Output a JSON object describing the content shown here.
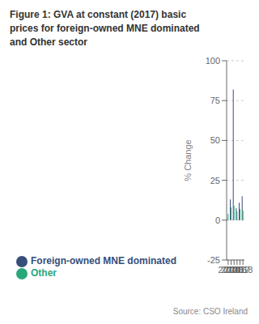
{
  "chart_data": {
    "type": "bar",
    "title": "Figure 1: GVA at constant (2017) basic\nprices for foreign-owned MNE dominated\nand Other sector",
    "categories": [
      "2013",
      "2014",
      "2015",
      "2016",
      "2017",
      "2018"
    ],
    "series": [
      {
        "name": "Foreign-owned MNE dominated",
        "color": "#374e7a",
        "values": [
          0.5,
          13,
          82,
          7.5,
          11,
          15
        ]
      },
      {
        "name": "Other",
        "color": "#29a87c",
        "values": [
          4,
          8,
          9,
          5.5,
          7,
          6
        ]
      }
    ],
    "ylabel": "% Change",
    "ylim": [
      -25,
      100
    ],
    "yticks": [
      -25,
      0,
      25,
      50,
      75,
      100
    ],
    "grid": true,
    "legend": "bottom",
    "annotations": [
      "Source: CSO Ireland"
    ]
  }
}
